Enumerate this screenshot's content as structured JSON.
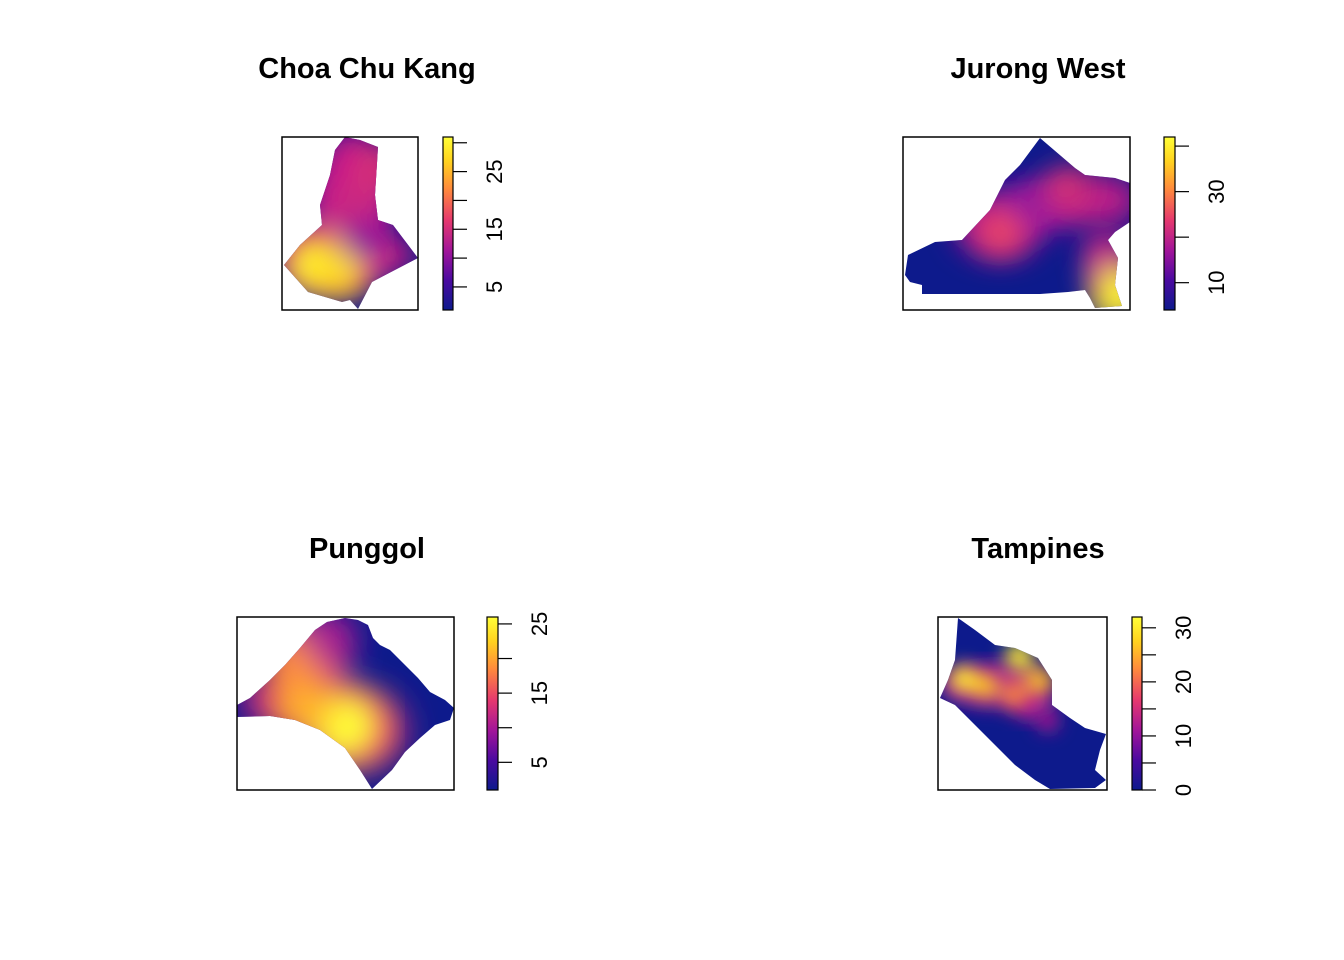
{
  "chart_data": [
    {
      "type": "heatmap",
      "title": "Choa Chu Kang",
      "colorbar": {
        "ticks": [
          5,
          10,
          15,
          20,
          25,
          30
        ],
        "labels": [
          "5",
          "",
          "15",
          "",
          "25",
          ""
        ],
        "range": [
          1,
          31
        ]
      },
      "palette": [
        "#0d1a8c",
        "#4a0aa0",
        "#a0149a",
        "#e6396e",
        "#ff8a3c",
        "#ffd21f",
        "#ffff38"
      ],
      "hotspots": [
        {
          "x": 0.25,
          "y": 0.26,
          "value": 30
        },
        {
          "x": 0.42,
          "y": 0.23,
          "value": 27
        },
        {
          "x": 0.68,
          "y": 0.82,
          "value": 15
        },
        {
          "x": 0.52,
          "y": 0.6,
          "value": 14
        },
        {
          "x": 0.6,
          "y": 0.4,
          "value": 10
        }
      ]
    },
    {
      "type": "heatmap",
      "title": "Jurong West",
      "colorbar": {
        "ticks": [
          10,
          20,
          30,
          40
        ],
        "labels": [
          "10",
          "",
          "30",
          ""
        ],
        "range": [
          4,
          42
        ]
      },
      "palette": [
        "#0d1a8c",
        "#4a0aa0",
        "#a0149a",
        "#e6396e",
        "#ff8a3c",
        "#ffd21f",
        "#ffff38"
      ],
      "hotspots": [
        {
          "x": 0.43,
          "y": 0.45,
          "value": 24
        },
        {
          "x": 0.72,
          "y": 0.7,
          "value": 22
        },
        {
          "x": 0.9,
          "y": 0.3,
          "value": 20
        },
        {
          "x": 0.95,
          "y": 0.08,
          "value": 40
        },
        {
          "x": 0.55,
          "y": 0.62,
          "value": 16
        }
      ]
    },
    {
      "type": "heatmap",
      "title": "Punggol",
      "colorbar": {
        "ticks": [
          5,
          10,
          15,
          20,
          25
        ],
        "labels": [
          "5",
          "",
          "15",
          "",
          "25"
        ],
        "range": [
          1,
          26
        ]
      },
      "palette": [
        "#0d1a8c",
        "#4a0aa0",
        "#a0149a",
        "#e6396e",
        "#ff8a3c",
        "#ffd21f",
        "#ffff38"
      ],
      "hotspots": [
        {
          "x": 0.5,
          "y": 0.37,
          "value": 26
        },
        {
          "x": 0.3,
          "y": 0.5,
          "value": 20
        },
        {
          "x": 0.27,
          "y": 0.75,
          "value": 18
        },
        {
          "x": 0.42,
          "y": 0.88,
          "value": 10
        }
      ]
    },
    {
      "type": "heatmap",
      "title": "Tampines",
      "colorbar": {
        "ticks": [
          0,
          5,
          10,
          15,
          20,
          25,
          30
        ],
        "labels": [
          "0",
          "",
          "10",
          "",
          "20",
          "",
          "30"
        ],
        "range": [
          0,
          32
        ]
      },
      "palette": [
        "#0d1a8c",
        "#4a0aa0",
        "#a0149a",
        "#e6396e",
        "#ff8a3c",
        "#ffd21f",
        "#ffff38"
      ],
      "hotspots": [
        {
          "x": 0.15,
          "y": 0.64,
          "value": 30
        },
        {
          "x": 0.28,
          "y": 0.6,
          "value": 26
        },
        {
          "x": 0.48,
          "y": 0.77,
          "value": 30
        },
        {
          "x": 0.6,
          "y": 0.63,
          "value": 26
        },
        {
          "x": 0.45,
          "y": 0.55,
          "value": 22
        },
        {
          "x": 0.65,
          "y": 0.4,
          "value": 12
        }
      ]
    }
  ]
}
